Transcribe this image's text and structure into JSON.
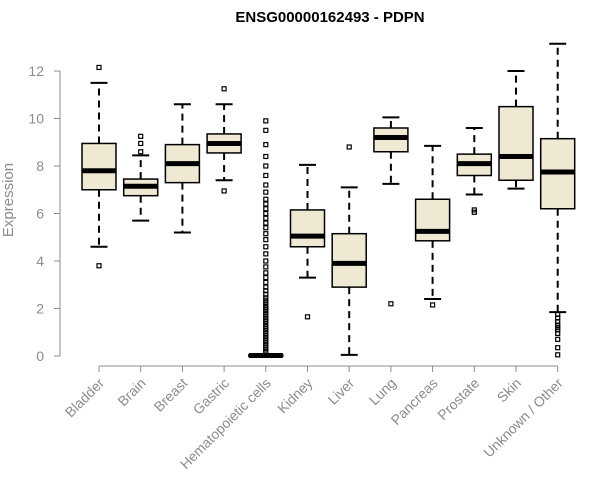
{
  "chart_data": {
    "type": "box",
    "title": "ENSG00000162493 - PDPN",
    "ylabel": "Expression",
    "ylim": [
      0,
      13
    ],
    "yticks": [
      0,
      2,
      4,
      6,
      8,
      10,
      12
    ],
    "box_color": "#efe9d3",
    "line_color": "#000000",
    "axis_color": "#8c8c8c",
    "categories": [
      "Bladder",
      "Brain",
      "Breast",
      "Gastric",
      "Hematopoietic cells",
      "Kidney",
      "Liver",
      "Lung",
      "Pancreas",
      "Prostate",
      "Skin",
      "Unknown / Other"
    ],
    "boxes": [
      {
        "q1": 7.0,
        "median": 7.8,
        "q3": 8.95,
        "whisker_low": 4.6,
        "whisker_high": 11.5,
        "outliers": [
          3.8,
          12.15
        ]
      },
      {
        "q1": 6.75,
        "median": 7.15,
        "q3": 7.45,
        "whisker_low": 5.7,
        "whisker_high": 8.45,
        "outliers": [
          8.6,
          8.95,
          9.25
        ]
      },
      {
        "q1": 7.3,
        "median": 8.1,
        "q3": 8.9,
        "whisker_low": 5.2,
        "whisker_high": 10.6,
        "outliers": []
      },
      {
        "q1": 8.55,
        "median": 8.95,
        "q3": 9.35,
        "whisker_low": 7.4,
        "whisker_high": 10.6,
        "outliers": [
          6.95,
          11.25
        ]
      },
      {
        "q1": 0.0,
        "median": 0.02,
        "q3": 0.04,
        "whisker_low": 0.0,
        "whisker_high": 0.08,
        "outliers": [
          0.15,
          0.25,
          0.35,
          0.45,
          0.55,
          0.65,
          0.75,
          0.85,
          0.95,
          1.05,
          1.15,
          1.25,
          1.35,
          1.45,
          1.55,
          1.65,
          1.75,
          1.85,
          1.95,
          2.05,
          2.15,
          2.25,
          2.35,
          2.45,
          2.6,
          2.75,
          2.9,
          3.1,
          3.3,
          3.5,
          3.75,
          4.0,
          4.3,
          4.6,
          4.9,
          5.15,
          5.4,
          5.6,
          5.8,
          6.0,
          6.2,
          6.4,
          6.6,
          6.9,
          7.2,
          7.6,
          8.0,
          8.4,
          8.9,
          9.5,
          9.9
        ]
      },
      {
        "q1": 4.6,
        "median": 5.05,
        "q3": 6.15,
        "whisker_low": 3.3,
        "whisker_high": 8.05,
        "outliers": [
          1.65
        ]
      },
      {
        "q1": 2.9,
        "median": 3.9,
        "q3": 5.15,
        "whisker_low": 0.05,
        "whisker_high": 7.1,
        "outliers": [
          8.8
        ]
      },
      {
        "q1": 8.6,
        "median": 9.2,
        "q3": 9.6,
        "whisker_low": 7.25,
        "whisker_high": 10.05,
        "outliers": [
          2.2
        ]
      },
      {
        "q1": 4.85,
        "median": 5.25,
        "q3": 6.6,
        "whisker_low": 2.4,
        "whisker_high": 8.85,
        "outliers": [
          2.15
        ]
      },
      {
        "q1": 7.6,
        "median": 8.1,
        "q3": 8.5,
        "whisker_low": 6.8,
        "whisker_high": 9.6,
        "outliers": [
          6.05,
          6.15
        ]
      },
      {
        "q1": 7.4,
        "median": 8.4,
        "q3": 10.5,
        "whisker_low": 7.05,
        "whisker_high": 12.0,
        "outliers": []
      },
      {
        "q1": 6.2,
        "median": 7.75,
        "q3": 9.15,
        "whisker_low": 1.85,
        "whisker_high": 13.15,
        "outliers": [
          0.05,
          0.35,
          0.7,
          0.95,
          1.1,
          1.2,
          1.3,
          1.45,
          1.6,
          1.75
        ]
      }
    ]
  }
}
